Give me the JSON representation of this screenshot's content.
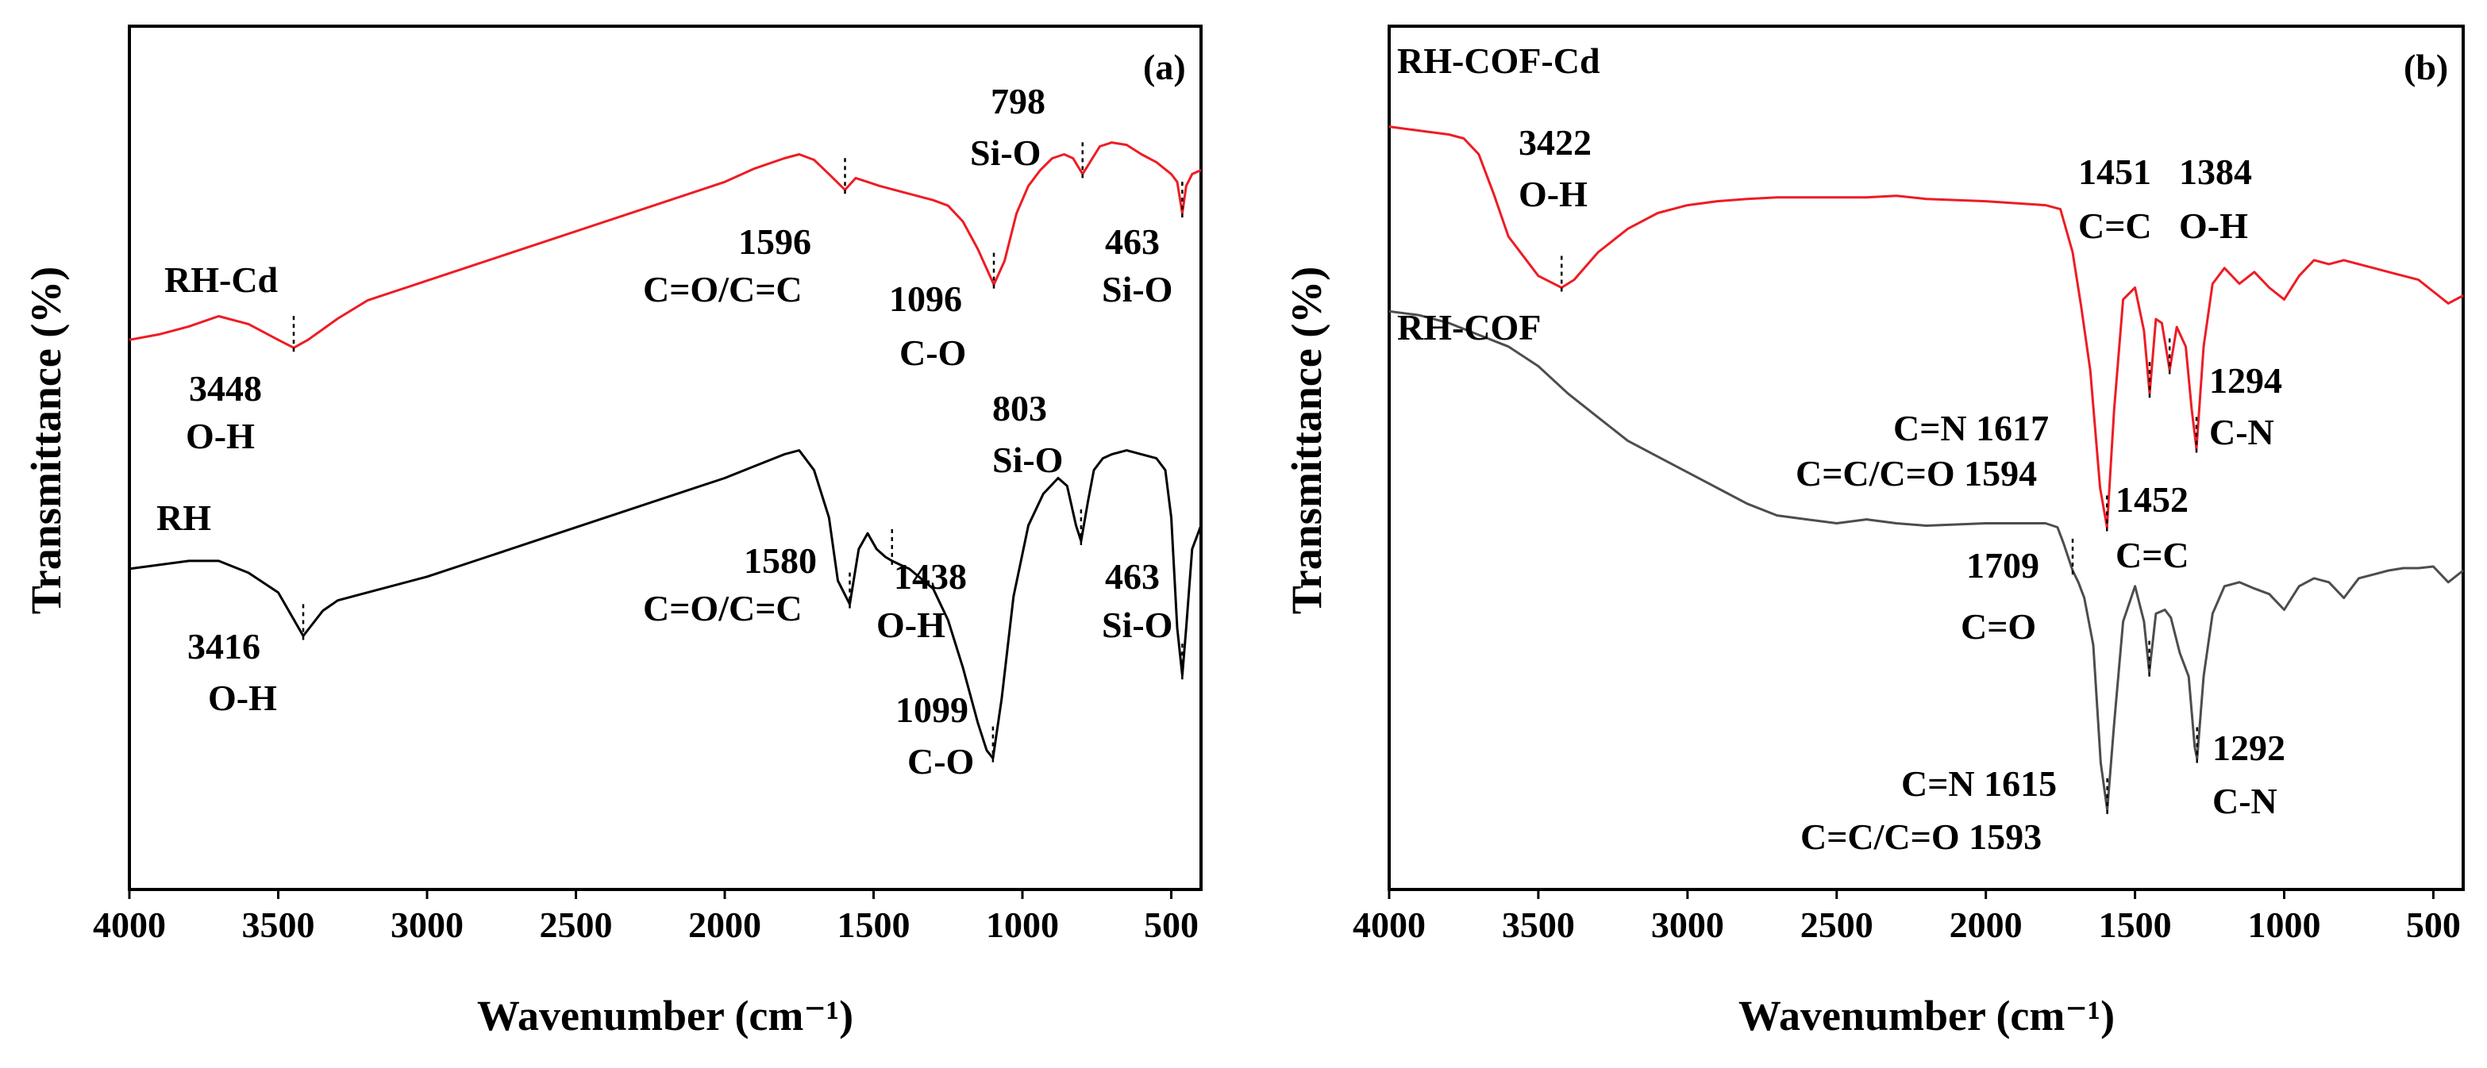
{
  "colors": {
    "red": "#ee1c24",
    "black": "#000000",
    "gray": "#4d4d4d"
  },
  "chart_data": [
    {
      "type": "line",
      "panel": "(a)",
      "xlabel": "Wavenumber (cm⁻¹)",
      "ylabel": "Transmittance (%)",
      "xlim": [
        4000,
        400
      ],
      "ylim": [
        0,
        1
      ],
      "xticks": [
        4000,
        3500,
        3000,
        2500,
        2000,
        1500,
        1000,
        500
      ],
      "series": [
        {
          "name": "RH-Cd",
          "color": "#ee1c24",
          "x": [
            4000,
            3900,
            3800,
            3700,
            3600,
            3500,
            3448,
            3400,
            3300,
            3200,
            3000,
            2800,
            2600,
            2400,
            2200,
            2000,
            1900,
            1800,
            1750,
            1700,
            1650,
            1596,
            1560,
            1520,
            1480,
            1400,
            1300,
            1250,
            1200,
            1150,
            1096,
            1060,
            1020,
            980,
            940,
            900,
            860,
            830,
            798,
            770,
            740,
            700,
            650,
            600,
            550,
            500,
            480,
            463,
            450,
            430,
            400
          ],
          "y": [
            0.665,
            0.672,
            0.682,
            0.695,
            0.685,
            0.665,
            0.655,
            0.665,
            0.692,
            0.715,
            0.74,
            0.765,
            0.79,
            0.815,
            0.84,
            0.865,
            0.882,
            0.895,
            0.9,
            0.893,
            0.875,
            0.855,
            0.87,
            0.865,
            0.86,
            0.852,
            0.842,
            0.835,
            0.815,
            0.78,
            0.735,
            0.765,
            0.825,
            0.86,
            0.88,
            0.895,
            0.9,
            0.895,
            0.875,
            0.892,
            0.91,
            0.915,
            0.912,
            0.9,
            0.89,
            0.875,
            0.865,
            0.825,
            0.86,
            0.875,
            0.88
          ]
        },
        {
          "name": "RH",
          "color": "#000000",
          "x": [
            4000,
            3900,
            3800,
            3700,
            3600,
            3500,
            3416,
            3350,
            3300,
            3200,
            3000,
            2800,
            2600,
            2400,
            2200,
            2000,
            1900,
            1800,
            1750,
            1700,
            1650,
            1620,
            1580,
            1550,
            1520,
            1490,
            1460,
            1438,
            1410,
            1380,
            1300,
            1250,
            1200,
            1150,
            1120,
            1099,
            1070,
            1030,
            980,
            930,
            880,
            850,
            820,
            803,
            780,
            760,
            730,
            700,
            650,
            600,
            550,
            520,
            500,
            480,
            463,
            450,
            430,
            400
          ],
          "y": [
            0.375,
            0.38,
            0.385,
            0.385,
            0.37,
            0.345,
            0.29,
            0.322,
            0.335,
            0.345,
            0.365,
            0.39,
            0.415,
            0.44,
            0.465,
            0.49,
            0.505,
            0.52,
            0.525,
            0.5,
            0.44,
            0.36,
            0.33,
            0.4,
            0.42,
            0.4,
            0.39,
            0.385,
            0.38,
            0.375,
            0.35,
            0.31,
            0.25,
            0.18,
            0.145,
            0.135,
            0.21,
            0.34,
            0.43,
            0.47,
            0.49,
            0.48,
            0.43,
            0.41,
            0.46,
            0.5,
            0.515,
            0.52,
            0.525,
            0.52,
            0.515,
            0.5,
            0.44,
            0.3,
            0.24,
            0.3,
            0.4,
            0.43
          ]
        }
      ],
      "annotations": [
        {
          "text": "RH-Cd"
        },
        {
          "text": "3448"
        },
        {
          "text": "O-H"
        },
        {
          "text": "1596"
        },
        {
          "text": "C=O/C=C"
        },
        {
          "text": "798"
        },
        {
          "text": "Si-O"
        },
        {
          "text": "1096"
        },
        {
          "text": "C-O"
        },
        {
          "text": "463"
        },
        {
          "text": "Si-O"
        },
        {
          "text": "RH"
        },
        {
          "text": "3416"
        },
        {
          "text": "O-H"
        },
        {
          "text": "1580"
        },
        {
          "text": "C=O/C=C"
        },
        {
          "text": "1438"
        },
        {
          "text": "O-H"
        },
        {
          "text": "803"
        },
        {
          "text": "Si-O"
        },
        {
          "text": "1099"
        },
        {
          "text": "C-O"
        },
        {
          "text": "463"
        },
        {
          "text": "Si-O"
        }
      ]
    },
    {
      "type": "line",
      "panel": "(b)",
      "xlabel": "Wavenumber (cm⁻¹)",
      "ylabel": "Transmittance (%)",
      "xlim": [
        4000,
        400
      ],
      "ylim": [
        0,
        1
      ],
      "xticks": [
        4000,
        3500,
        3000,
        2500,
        2000,
        1500,
        1000,
        500
      ],
      "series": [
        {
          "name": "RH-COF-Cd",
          "color": "#ee1c24",
          "x": [
            4000,
            3900,
            3800,
            3750,
            3700,
            3650,
            3600,
            3500,
            3422,
            3380,
            3300,
            3200,
            3100,
            3000,
            2900,
            2800,
            2700,
            2600,
            2400,
            2300,
            2200,
            2000,
            1800,
            1750,
            1709,
            1680,
            1650,
            1617,
            1594,
            1570,
            1540,
            1500,
            1470,
            1451,
            1430,
            1410,
            1384,
            1360,
            1330,
            1310,
            1294,
            1270,
            1240,
            1200,
            1150,
            1100,
            1050,
            1000,
            950,
            900,
            850,
            800,
            750,
            700,
            650,
            600,
            550,
            500,
            450,
            400
          ],
          "y": [
            0.96,
            0.955,
            0.95,
            0.945,
            0.925,
            0.875,
            0.82,
            0.77,
            0.755,
            0.765,
            0.8,
            0.83,
            0.85,
            0.86,
            0.865,
            0.868,
            0.87,
            0.87,
            0.87,
            0.872,
            0.868,
            0.865,
            0.86,
            0.855,
            0.8,
            0.73,
            0.65,
            0.5,
            0.45,
            0.6,
            0.74,
            0.755,
            0.7,
            0.62,
            0.715,
            0.71,
            0.65,
            0.705,
            0.68,
            0.6,
            0.55,
            0.68,
            0.76,
            0.78,
            0.76,
            0.775,
            0.755,
            0.74,
            0.77,
            0.79,
            0.785,
            0.79,
            0.785,
            0.78,
            0.775,
            0.77,
            0.765,
            0.75,
            0.735,
            0.745
          ]
        },
        {
          "name": "RH-COF",
          "color": "#4d4d4d",
          "x": [
            4000,
            3900,
            3800,
            3700,
            3600,
            3500,
            3400,
            3300,
            3200,
            3100,
            3000,
            2900,
            2800,
            2700,
            2600,
            2500,
            2400,
            2300,
            2200,
            2000,
            1800,
            1760,
            1740,
            1709,
            1690,
            1670,
            1640,
            1615,
            1593,
            1570,
            1540,
            1500,
            1470,
            1452,
            1430,
            1400,
            1380,
            1350,
            1320,
            1300,
            1292,
            1270,
            1240,
            1200,
            1150,
            1100,
            1050,
            1000,
            950,
            900,
            850,
            800,
            750,
            700,
            650,
            600,
            550,
            500,
            450,
            400
          ],
          "y": [
            0.725,
            0.72,
            0.71,
            0.695,
            0.68,
            0.655,
            0.62,
            0.59,
            0.56,
            0.54,
            0.52,
            0.5,
            0.48,
            0.465,
            0.46,
            0.455,
            0.46,
            0.455,
            0.452,
            0.455,
            0.455,
            0.45,
            0.43,
            0.395,
            0.38,
            0.36,
            0.3,
            0.15,
            0.09,
            0.2,
            0.33,
            0.375,
            0.33,
            0.265,
            0.34,
            0.345,
            0.335,
            0.29,
            0.26,
            0.17,
            0.155,
            0.26,
            0.34,
            0.375,
            0.38,
            0.372,
            0.365,
            0.345,
            0.375,
            0.385,
            0.38,
            0.36,
            0.385,
            0.39,
            0.395,
            0.398,
            0.398,
            0.4,
            0.38,
            0.395
          ]
        }
      ],
      "annotations": [
        {
          "text": "RH-COF-Cd"
        },
        {
          "text": "3422"
        },
        {
          "text": "O-H"
        },
        {
          "text": "1451"
        },
        {
          "text": "1384"
        },
        {
          "text": "C=C"
        },
        {
          "text": "O-H"
        },
        {
          "text": "1294"
        },
        {
          "text": "C-N"
        },
        {
          "text": "C=N 1617"
        },
        {
          "text": "C=C/C=O 1594"
        },
        {
          "text": "1452"
        },
        {
          "text": "C=C"
        },
        {
          "text": "RH-COF"
        },
        {
          "text": "1709"
        },
        {
          "text": "C=O"
        },
        {
          "text": "1292"
        },
        {
          "text": "C-N"
        },
        {
          "text": "C=N 1615"
        },
        {
          "text": "C=C/C=O 1593"
        }
      ]
    }
  ]
}
